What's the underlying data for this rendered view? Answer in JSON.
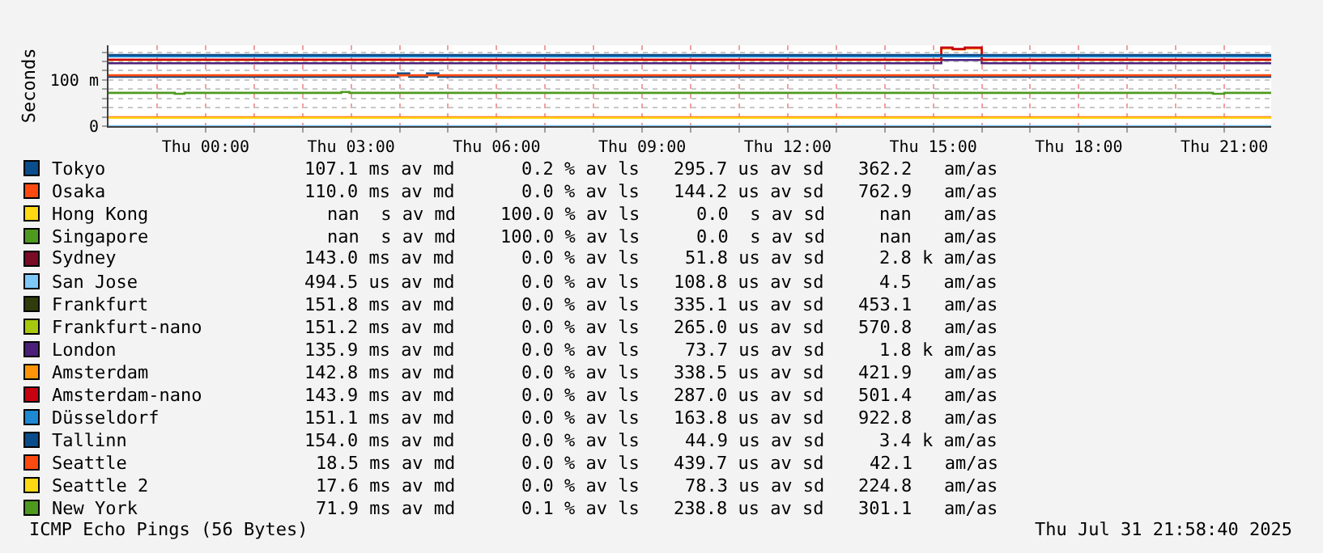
{
  "chart_data": {
    "type": "step",
    "ylabel": "Seconds",
    "xlim": [
      "2025-07-30T22:00",
      "2025-07-31T21:58"
    ],
    "xticks": [
      {
        "value": "2025-07-30T23:00",
        "label": null
      },
      {
        "value": "2025-07-31T00:00",
        "label": "Thu 00:00"
      },
      {
        "value": "2025-07-31T01:00",
        "label": null
      },
      {
        "value": "2025-07-31T02:00",
        "label": null
      },
      {
        "value": "2025-07-31T03:00",
        "label": "Thu 03:00"
      },
      {
        "value": "2025-07-31T04:00",
        "label": null
      },
      {
        "value": "2025-07-31T05:00",
        "label": null
      },
      {
        "value": "2025-07-31T06:00",
        "label": "Thu 06:00"
      },
      {
        "value": "2025-07-31T07:00",
        "label": null
      },
      {
        "value": "2025-07-31T08:00",
        "label": null
      },
      {
        "value": "2025-07-31T09:00",
        "label": "Thu 09:00"
      },
      {
        "value": "2025-07-31T10:00",
        "label": null
      },
      {
        "value": "2025-07-31T11:00",
        "label": null
      },
      {
        "value": "2025-07-31T12:00",
        "label": "Thu 12:00"
      },
      {
        "value": "2025-07-31T13:00",
        "label": null
      },
      {
        "value": "2025-07-31T14:00",
        "label": null
      },
      {
        "value": "2025-07-31T15:00",
        "label": "Thu 15:00"
      },
      {
        "value": "2025-07-31T16:00",
        "label": null
      },
      {
        "value": "2025-07-31T17:00",
        "label": null
      },
      {
        "value": "2025-07-31T18:00",
        "label": "Thu 18:00"
      },
      {
        "value": "2025-07-31T19:00",
        "label": null
      },
      {
        "value": "2025-07-31T20:00",
        "label": null
      },
      {
        "value": "2025-07-31T21:00",
        "label": "Thu 21:00"
      }
    ],
    "ylim": [
      0,
      175
    ],
    "yticks": [
      0,
      {
        "value": 20,
        "label": null
      },
      {
        "value": 40,
        "label": null
      },
      {
        "value": 60,
        "label": null
      },
      {
        "value": 80,
        "label": null
      },
      {
        "value": 100,
        "label": "100 m"
      },
      {
        "value": 120,
        "label": null
      },
      {
        "value": 140,
        "label": null
      },
      {
        "value": 160,
        "label": null
      }
    ],
    "grid": true,
    "legend": "bottom",
    "marker": "none",
    "line_style": "solid",
    "series": [
      {
        "name": "Tokyo",
        "color": "#0b4c8a",
        "x": [
          "2025-07-30T22:00",
          "2025-07-31T03:58",
          "2025-07-31T04:12",
          "2025-07-31T04:34",
          "2025-07-31T04:48",
          "2025-07-31T21:58"
        ],
        "values": [
          107,
          114,
          107,
          114,
          107,
          107
        ]
      },
      {
        "name": "Osaka",
        "color": "#ff4a0f",
        "x": [
          "2025-07-30T22:00",
          "2025-07-31T21:58"
        ],
        "values": [
          110,
          110
        ]
      },
      {
        "name": "Hong Kong",
        "color": "#ffd814"
      },
      {
        "name": "Singapore",
        "color": "#4e9a1e"
      },
      {
        "name": "Sydney",
        "color": "#7a0a26"
      },
      {
        "name": "San Jose",
        "color": "#7ec8f8",
        "x": [
          "2025-07-30T22:00",
          "2025-07-31T21:58"
        ],
        "values": [
          0,
          0
        ]
      },
      {
        "name": "Frankfurt",
        "color": "#2e3d0a"
      },
      {
        "name": "Frankfurt-nano",
        "color": "#a7c80d"
      },
      {
        "name": "London",
        "color": "#4b1f7a",
        "x": [
          "2025-07-30T22:00",
          "2025-07-31T15:10",
          "2025-07-31T16:00",
          "2025-07-31T21:58"
        ],
        "values": [
          136,
          143,
          136,
          136
        ]
      },
      {
        "name": "Amsterdam",
        "color": "#ff9408",
        "x": [
          "2025-07-30T22:00",
          "2025-07-31T15:10",
          "2025-07-31T15:24",
          "2025-07-31T15:39",
          "2025-07-31T16:00",
          "2025-07-31T21:58"
        ],
        "values": [
          143,
          168,
          166,
          168,
          143,
          143
        ]
      },
      {
        "name": "Amsterdam-nano",
        "color": "#c8000f",
        "x": [
          "2025-07-30T22:00",
          "2025-07-31T15:10",
          "2025-07-31T15:24",
          "2025-07-31T15:39",
          "2025-07-31T16:00",
          "2025-07-31T21:58"
        ],
        "values": [
          144,
          170,
          167,
          170,
          144,
          144
        ]
      },
      {
        "name": "Düsseldorf",
        "color": "#1e88d2",
        "x": [
          "2025-07-30T22:00",
          "2025-07-31T21:58"
        ],
        "values": [
          151,
          151
        ]
      },
      {
        "name": "Tallinn",
        "color": "#0b4c8a",
        "x": [
          "2025-07-30T22:00",
          "2025-07-31T21:58"
        ],
        "values": [
          154,
          154
        ]
      },
      {
        "name": "Seattle",
        "color": "#ff4a0f",
        "x": [
          "2025-07-30T22:00",
          "2025-07-31T21:58"
        ],
        "values": [
          19,
          19
        ]
      },
      {
        "name": "Seattle 2",
        "color": "#ffd814",
        "x": [
          "2025-07-30T22:00",
          "2025-07-31T21:58"
        ],
        "values": [
          18,
          18
        ]
      },
      {
        "name": "New York",
        "color": "#4e9a1e",
        "x": [
          "2025-07-30T22:00",
          "2025-07-30T23:22",
          "2025-07-30T23:34",
          "2025-07-31T02:48",
          "2025-07-31T02:58",
          "2025-07-31T20:46",
          "2025-07-31T21:00",
          "2025-07-31T21:58"
        ],
        "values": [
          72,
          70,
          72,
          74,
          72,
          70,
          72,
          72
        ]
      }
    ],
    "annotations": [
      "107.1 ms av md",
      "0.2 % av ls",
      "295.7 us av sd",
      "362.2   am/as",
      "110.0 ms av md",
      "0.0 % av ls",
      "144.2 us av sd",
      "762.9   am/as",
      "nan  s av md",
      "100.0 % av ls",
      "0.0  s av sd",
      "nan   am/as",
      "nan  s av md",
      "100.0 % av ls",
      "0.0  s av sd",
      "nan   am/as",
      "143.0 ms av md",
      "0.0 % av ls",
      "51.8 us av sd",
      "2.8 k am/as",
      "494.5 us av md",
      "0.0 % av ls",
      "108.8 us av sd",
      "4.5   am/as",
      "151.8 ms av md",
      "0.0 % av ls",
      "335.1 us av sd",
      "453.1   am/as",
      "151.2 ms av md",
      "0.0 % av ls",
      "265.0 us av sd",
      "570.8   am/as",
      "135.9 ms av md",
      "0.0 % av ls",
      "73.7 us av sd",
      "1.8 k am/as",
      "142.8 ms av md",
      "0.0 % av ls",
      "338.5 us av sd",
      "421.9   am/as",
      "143.9 ms av md",
      "0.0 % av ls",
      "287.0 us av sd",
      "501.4   am/as",
      "151.1 ms av md",
      "0.0 % av ls",
      "163.8 us av sd",
      "922.8   am/as",
      "154.0 ms av md",
      "0.0 % av ls",
      "44.9 us av sd",
      "3.4 k am/as",
      "18.5 ms av md",
      "0.0 % av ls",
      "439.7 us av sd",
      "42.1   am/as",
      "17.6 ms av md",
      "0.0 % av ls",
      "78.3 us av sd",
      "224.8   am/as",
      "71.9 ms av md",
      "0.1 % av ls",
      "238.8 us av sd",
      "301.1   am/as",
      "ICMP Echo Pings (56 Bytes)",
      "Thu Jul 31 21:58:40 2025"
    ]
  }
}
